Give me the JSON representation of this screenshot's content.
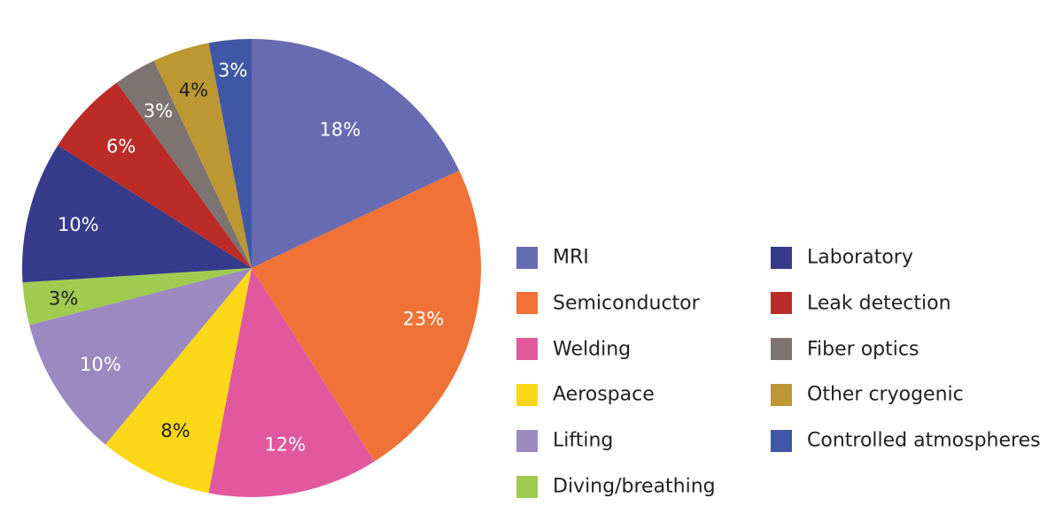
{
  "chart_data": {
    "type": "pie",
    "title": "",
    "start_angle_deg": 0,
    "direction": "clockwise",
    "slices": [
      {
        "label": "MRI",
        "value": 18,
        "display": "18%",
        "color": "#676bb2",
        "label_color": "#ffffff"
      },
      {
        "label": "Semiconductor",
        "value": 23,
        "display": "23%",
        "color": "#f07236",
        "label_color": "#ffffff"
      },
      {
        "label": "Welding",
        "value": 12,
        "display": "12%",
        "color": "#e2589e",
        "label_color": "#ffffff"
      },
      {
        "label": "Aerospace",
        "value": 8,
        "display": "8%",
        "color": "#fbd817",
        "label_color": "#231f20"
      },
      {
        "label": "Lifting",
        "value": 10,
        "display": "10%",
        "color": "#9c89c0",
        "label_color": "#ffffff"
      },
      {
        "label": "Diving/breathing",
        "value": 3,
        "display": "3%",
        "color": "#a0cb50",
        "label_color": "#231f20"
      },
      {
        "label": "Laboratory",
        "value": 10,
        "display": "10%",
        "color": "#363b8b",
        "label_color": "#ffffff"
      },
      {
        "label": "Leak detection",
        "value": 6,
        "display": "6%",
        "color": "#bb2c28",
        "label_color": "#ffffff"
      },
      {
        "label": "Fiber optics",
        "value": 3,
        "display": "3%",
        "color": "#7d7472",
        "label_color": "#ffffff"
      },
      {
        "label": "Other cryogenic",
        "value": 4,
        "display": "4%",
        "color": "#bc9732",
        "label_color": "#231f20"
      },
      {
        "label": "Controlled atmospheres",
        "value": 3,
        "display": "3%",
        "color": "#3f57a6",
        "label_color": "#ffffff"
      }
    ],
    "legend": {
      "position": "right",
      "columns": 2,
      "column_1": [
        "MRI",
        "Semiconductor",
        "Welding",
        "Aerospace",
        "Lifting",
        "Diving/breathing"
      ],
      "column_2": [
        "Laboratory",
        "Leak detection",
        "Fiber optics",
        "Other cryogenic",
        "Controlled atmospheres"
      ]
    }
  }
}
